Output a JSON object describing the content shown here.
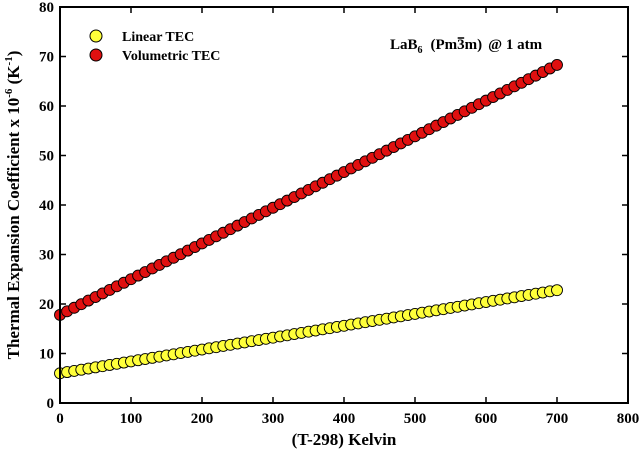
{
  "chart_data": {
    "type": "scatter",
    "xlabel": "(T-298) Kelvin",
    "ylabel": "Thermal Expansion Coefficient x 10",
    "ylabel_exponent": "-6",
    "ylabel_unit_open": " (K",
    "ylabel_unit_exponent": "-1",
    "ylabel_unit_close": ")",
    "xlim": [
      0,
      800
    ],
    "ylim": [
      0,
      80
    ],
    "x_ticks": [
      "0",
      "100",
      "200",
      "300",
      "400",
      "500",
      "600",
      "700",
      "800"
    ],
    "y_ticks": [
      "0",
      "10",
      "20",
      "30",
      "40",
      "50",
      "60",
      "70",
      "80"
    ],
    "grid": false,
    "legend_position": "top-left",
    "annotation": {
      "compound": "LaB",
      "compound_sub": "6",
      "space_group_open": "(Pm",
      "space_group_bar": "3",
      "space_group_close": "m)",
      "condition": "@ 1 atm"
    },
    "sample_step": 10,
    "series": [
      {
        "name": "Linear TEC",
        "color": "#ffff3a",
        "x_start": 0,
        "x_end": 700,
        "y_start": 6.0,
        "y_end": 22.8
      },
      {
        "name": "Volumetric TEC",
        "color": "#e01010",
        "x_start": 0,
        "x_end": 700,
        "y_start": 17.8,
        "y_end": 68.3
      }
    ]
  }
}
